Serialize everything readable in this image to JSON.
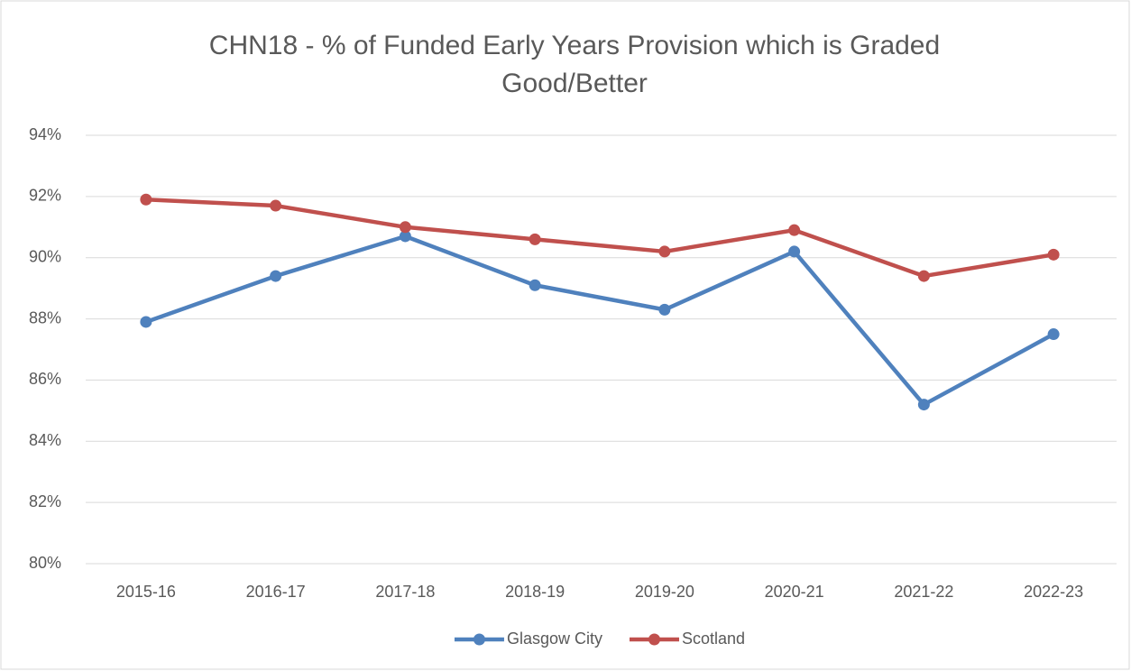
{
  "chart_data": {
    "type": "line",
    "title": "CHN18 - % of Funded Early Years Provision which is Graded Good/Better",
    "categories": [
      "2015-16",
      "2016-17",
      "2017-18",
      "2018-19",
      "2019-20",
      "2020-21",
      "2021-22",
      "2022-23"
    ],
    "series": [
      {
        "name": "Glasgow City",
        "color": "#4f81bd",
        "values": [
          87.9,
          89.4,
          90.7,
          89.1,
          88.3,
          90.2,
          85.2,
          87.5
        ]
      },
      {
        "name": "Scotland",
        "color": "#c0504d",
        "values": [
          91.9,
          91.7,
          91.0,
          90.6,
          90.2,
          90.9,
          89.4,
          90.1
        ]
      }
    ],
    "ylim": [
      80,
      94
    ],
    "yticks": [
      {
        "value": 80,
        "label": "80%"
      },
      {
        "value": 82,
        "label": "82%"
      },
      {
        "value": 84,
        "label": "84%"
      },
      {
        "value": 86,
        "label": "86%"
      },
      {
        "value": 88,
        "label": "88%"
      },
      {
        "value": 90,
        "label": "90%"
      },
      {
        "value": 92,
        "label": "92%"
      },
      {
        "value": 94,
        "label": "94%"
      }
    ],
    "grid": true,
    "legend": "bottom"
  }
}
